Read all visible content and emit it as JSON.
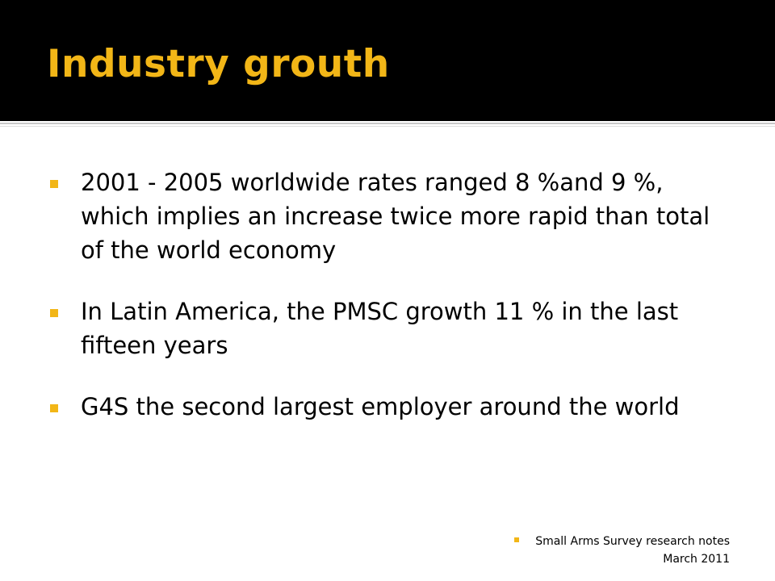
{
  "slide": {
    "title": "Industry grouth",
    "bullets": [
      {
        "text": "2001 - 2005  worldwide rates ranged 8 %and 9 %, which implies an increase twice more rapid than total of the world economy"
      },
      {
        "text": "In Latin America, the PMSC growth 11 % in the last fifteen years"
      },
      {
        "text": "G4S the second largest employer around the world"
      }
    ],
    "source": {
      "line1": "Small Arms Survey research notes",
      "line2": "March 2011"
    }
  },
  "colors": {
    "title_bar": "#000000",
    "title_text": "#f2b617",
    "bullet_marker": "#f2b617",
    "body_text": "#000000"
  },
  "icons": {
    "bullet": "square-bullet-icon"
  }
}
